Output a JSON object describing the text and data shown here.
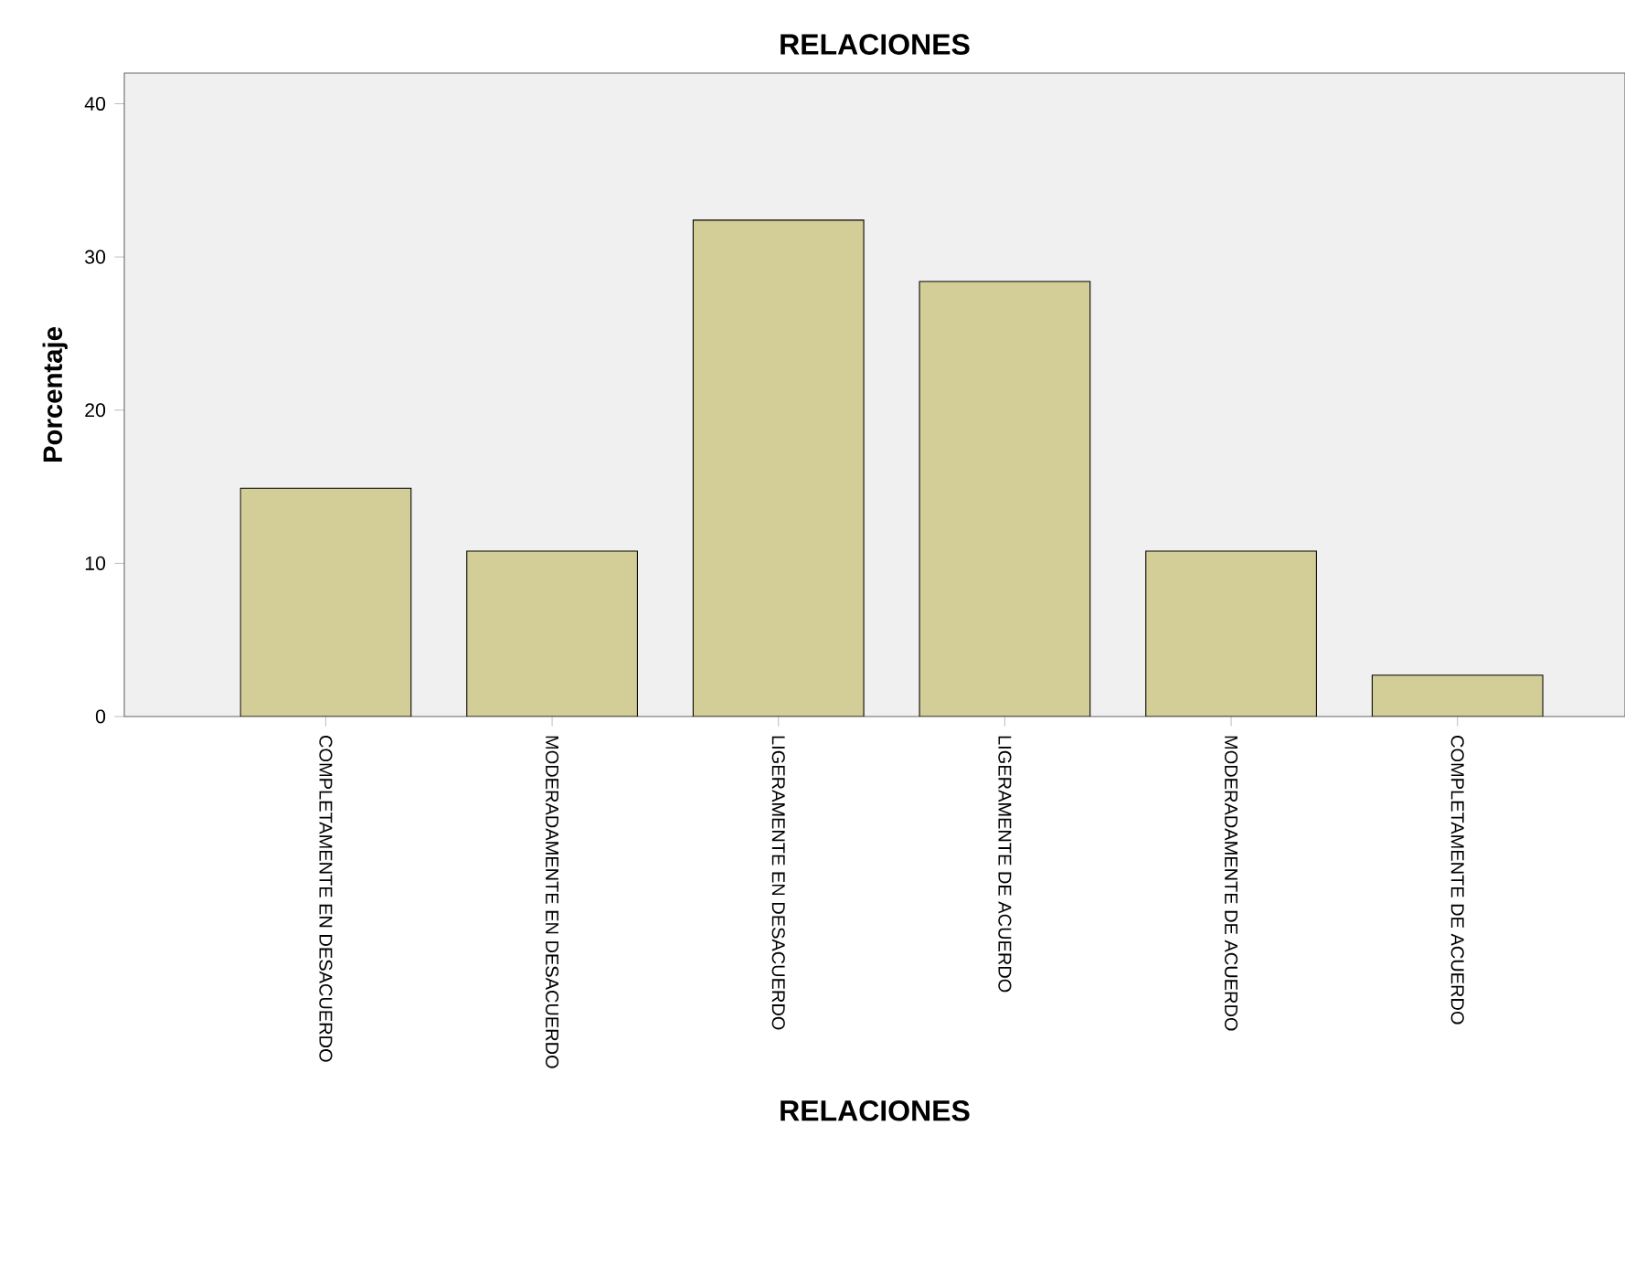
{
  "chart_data": {
    "type": "bar",
    "title": "RELACIONES",
    "xlabel": "RELACIONES",
    "ylabel": "Porcentaje",
    "categories": [
      "COMPLETAMENTE EN DESACUERDO",
      "MODERADAMENTE EN DESACUERDO",
      "LIGERAMENTE EN DESACUERDO",
      "LIGERAMENTE DE ACUERDO",
      "MODERADAMENTE DE ACUERDO",
      "COMPLETAMENTE DE ACUERDO"
    ],
    "values": [
      14.9,
      10.8,
      32.4,
      28.4,
      10.8,
      2.7
    ],
    "color": "#d3ce97",
    "ylim": [
      0,
      42
    ],
    "yticks": [
      0,
      10,
      20,
      30,
      40
    ]
  }
}
